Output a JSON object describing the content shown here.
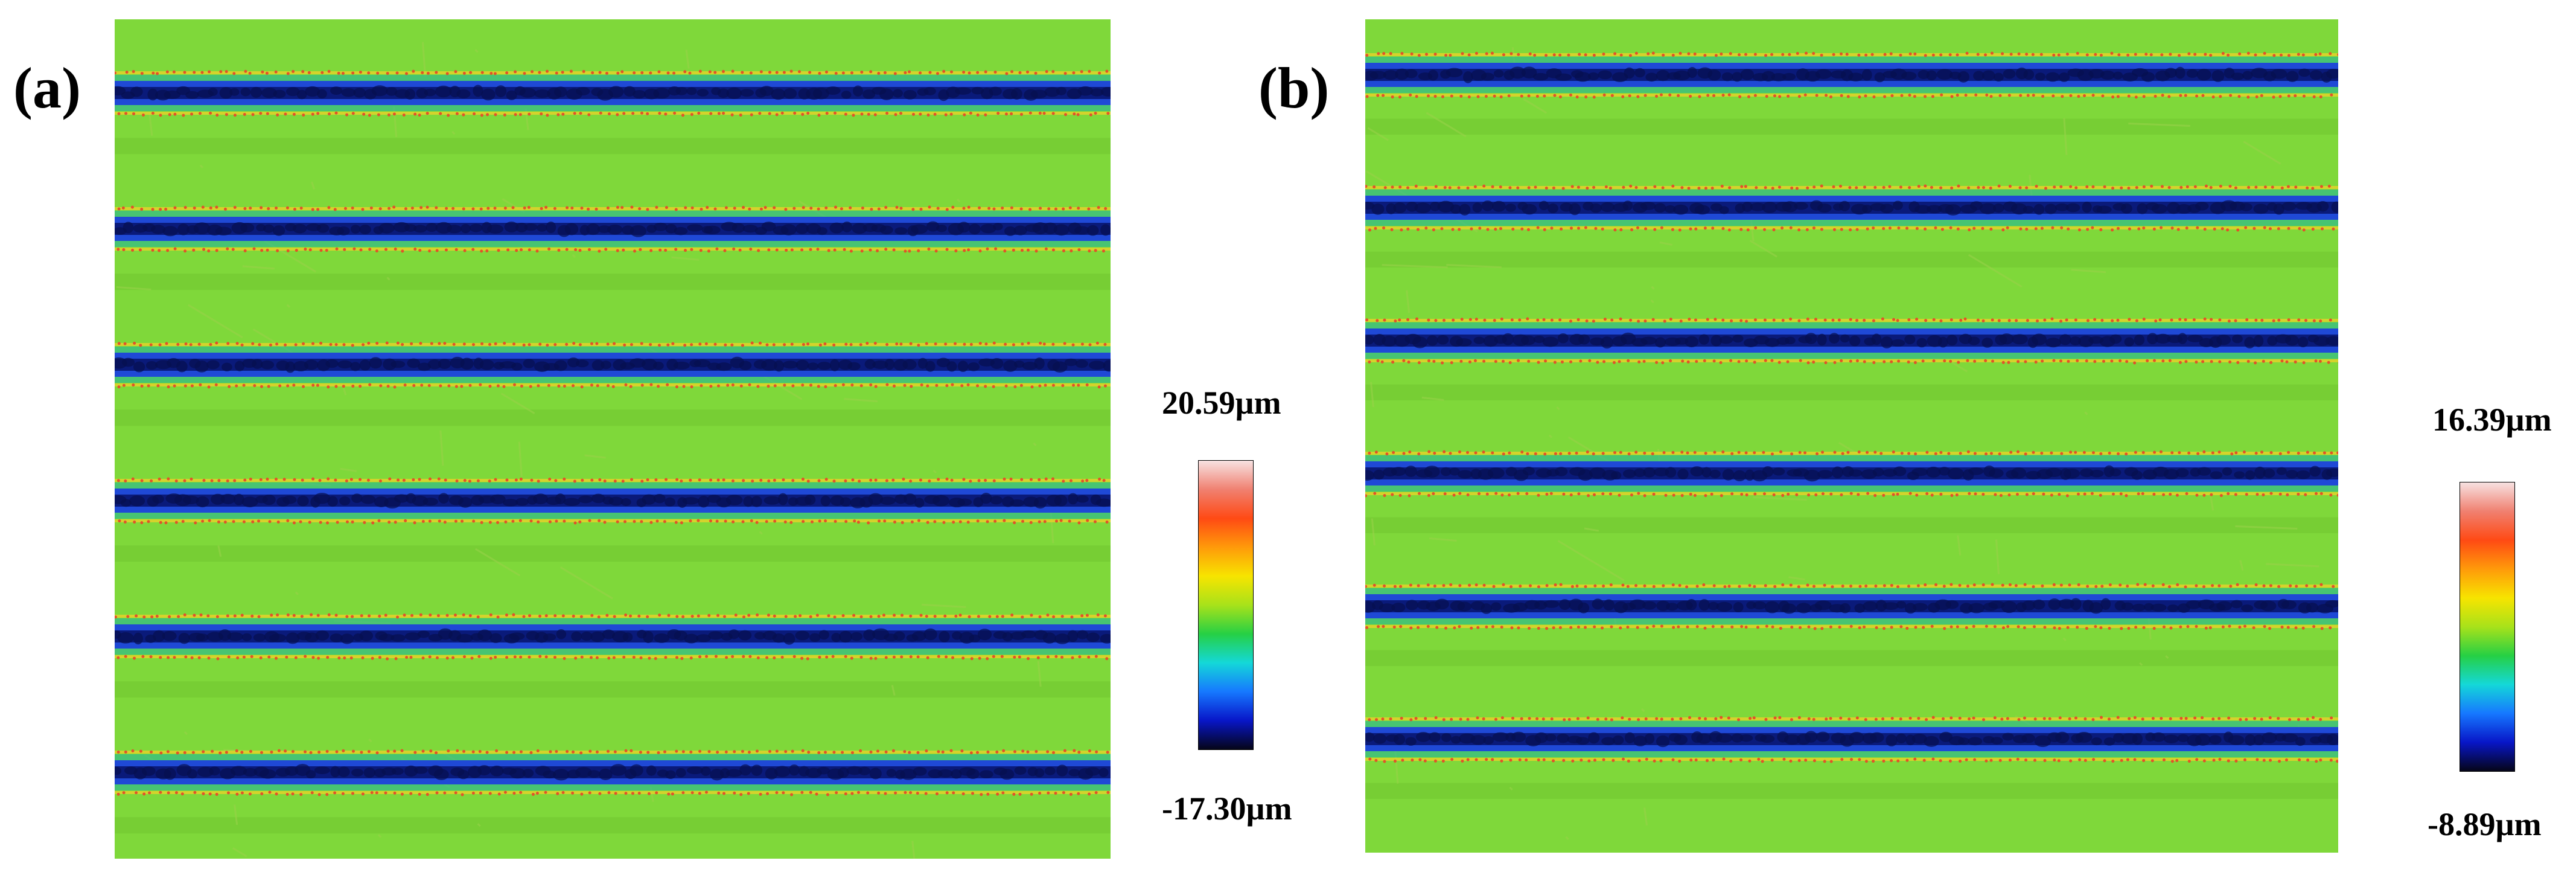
{
  "figure": {
    "panels": [
      {
        "label": "(a)",
        "scale_max": "20.59µm",
        "scale_min": "-17.30µm",
        "groove_count": 6
      },
      {
        "label": "(b)",
        "scale_max": "16.39µm",
        "scale_min": "-8.89µm",
        "groove_count": 6
      }
    ],
    "colors": {
      "surface_green": "#7fd83a",
      "surface_dark": "#6ec42e",
      "groove_deep": "#0a1a7a",
      "groove_mid": "#1f49d6",
      "edge_cyan": "#19b5a0",
      "rim_orange": "#e1532a",
      "rim_yellow": "#e3d22a"
    },
    "colorbar_stops": [
      "#f7e1e1",
      "#f08070",
      "#ff4a14",
      "#ff9a0a",
      "#f7e400",
      "#a8e21a",
      "#26d044",
      "#14d8d8",
      "#1678ff",
      "#0816c8",
      "#050518"
    ]
  }
}
